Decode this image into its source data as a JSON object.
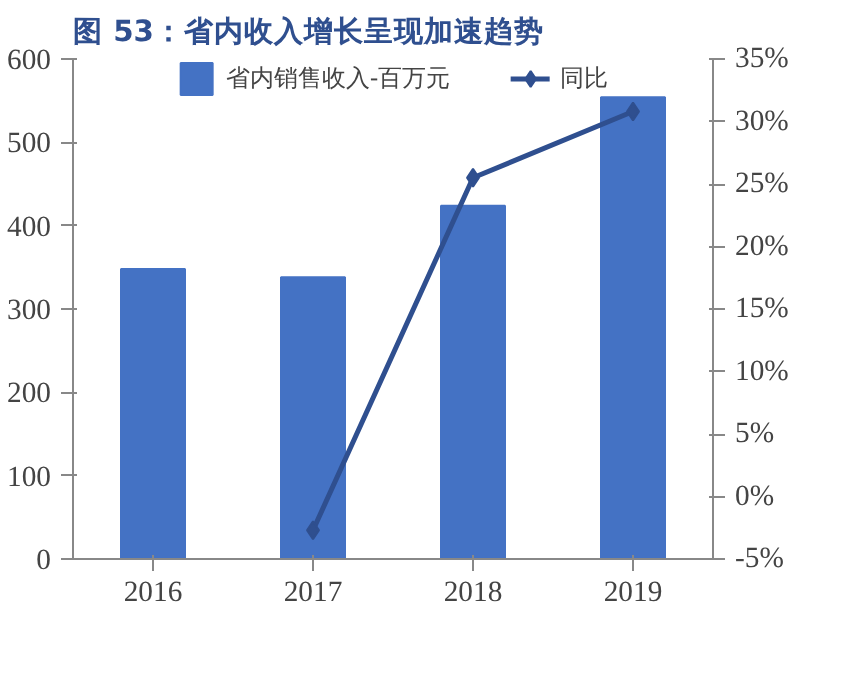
{
  "chart_data": {
    "type": "bar",
    "title": "图 53：省内收入增长呈现加速趋势",
    "categories": [
      "2016",
      "2017",
      "2018",
      "2019"
    ],
    "series": [
      {
        "name": "省内销售收入-百万元",
        "color": "#4472c4",
        "values": [
          348,
          338,
          424,
          554
        ]
      },
      {
        "name": "同比",
        "type": "line",
        "axis": "y2",
        "color": "#2f4f8f",
        "marker": "diamond",
        "values": [
          null,
          -2.7,
          25.5,
          30.8
        ]
      }
    ],
    "ylim": [
      0,
      600
    ],
    "yticks": [
      0,
      100,
      200,
      300,
      400,
      500,
      600
    ],
    "y2lim": [
      -5,
      35
    ],
    "y2ticks": [
      {
        "value": -5,
        "label": "-5%"
      },
      {
        "value": 0,
        "label": "0%"
      },
      {
        "value": 5,
        "label": "5%"
      },
      {
        "value": 10,
        "label": "10%"
      },
      {
        "value": 15,
        "label": "15%"
      },
      {
        "value": 20,
        "label": "20%"
      },
      {
        "value": 25,
        "label": "25%"
      },
      {
        "value": 30,
        "label": "30%"
      },
      {
        "value": 35,
        "label": "35%"
      }
    ],
    "grid": false,
    "legend": "top"
  }
}
